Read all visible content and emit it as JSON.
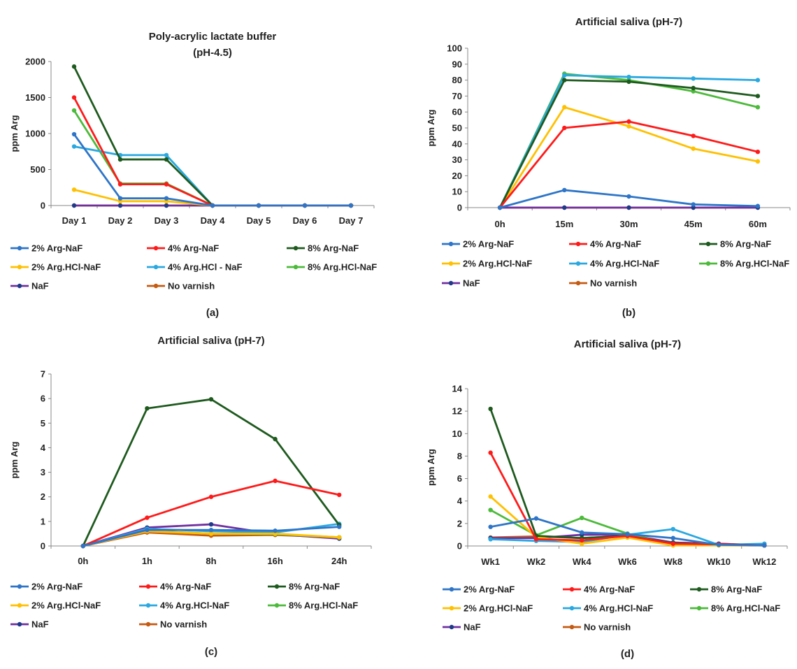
{
  "colors": {
    "s2argnaf": "#2e75c8",
    "s4argnaf": "#ff1a1a",
    "s8argnaf": "#1e5a1e",
    "s2hcl": "#ffc000",
    "s4hcl": "#2aa8e0",
    "s8hcl": "#4cba3a",
    "naf": "#7030a0",
    "novarnish": "#c55a11",
    "naf_marker": "#1f3a8a"
  },
  "chart_data": [
    {
      "type": "line",
      "panel_label": "(a)",
      "title": "Poly-acrylic lactate buffer",
      "subtitle": "(pH-4.5)",
      "ylabel": "ppm Arg",
      "ylim": [
        0,
        2000
      ],
      "yticks": [
        "0",
        "500",
        "1000",
        "1500",
        "2000"
      ],
      "categories": [
        "Day 1",
        "Day 2",
        "Day 3",
        "Day 4",
        "Day 5",
        "Day 6",
        "Day 7"
      ],
      "series": [
        {
          "name": "2% Arg-NaF",
          "key": "s2argnaf",
          "values": [
            990,
            100,
            100,
            0,
            0,
            0,
            0
          ]
        },
        {
          "name": "4% Arg-NaF",
          "key": "s4argnaf",
          "values": [
            1500,
            295,
            295,
            0,
            0,
            0,
            0
          ]
        },
        {
          "name": "8% Arg-NaF",
          "key": "s8argnaf",
          "values": [
            1930,
            640,
            640,
            0,
            0,
            0,
            0
          ]
        },
        {
          "name": "2% Arg.HCl-NaF",
          "key": "s2hcl",
          "values": [
            220,
            60,
            60,
            0,
            0,
            0,
            0
          ]
        },
        {
          "name": "4% Arg.HCl - NaF",
          "key": "s4hcl",
          "values": [
            820,
            700,
            700,
            0,
            0,
            0,
            0
          ]
        },
        {
          "name": "8% Arg.HCl-NaF",
          "key": "s8hcl",
          "values": [
            1320,
            305,
            305,
            0,
            0,
            0,
            0
          ]
        },
        {
          "name": "NaF",
          "key": "naf",
          "values": [
            0,
            0,
            0,
            0,
            0,
            0,
            0
          ]
        },
        {
          "name": "No varnish",
          "key": "novarnish",
          "values": [
            0,
            0,
            0,
            0,
            0,
            0,
            0
          ]
        }
      ]
    },
    {
      "type": "line",
      "panel_label": "(b)",
      "title": "Artificial saliva (pH-7)",
      "subtitle": "",
      "ylabel": "ppm Arg",
      "ylim": [
        0,
        100
      ],
      "yticks": [
        "0",
        "10",
        "20",
        "30",
        "40",
        "50",
        "60",
        "70",
        "80",
        "90",
        "100"
      ],
      "categories": [
        "0h",
        "15m",
        "30m",
        "45m",
        "60m"
      ],
      "series": [
        {
          "name": "2% Arg-NaF",
          "key": "s2argnaf",
          "values": [
            0,
            11,
            7,
            2,
            1
          ]
        },
        {
          "name": "4% Arg-NaF",
          "key": "s4argnaf",
          "values": [
            0,
            50,
            54,
            45,
            35
          ]
        },
        {
          "name": "8% Arg-NaF",
          "key": "s8argnaf",
          "values": [
            0,
            80,
            79,
            75,
            70
          ]
        },
        {
          "name": "2% Arg.HCl-NaF",
          "key": "s2hcl",
          "values": [
            0,
            63,
            51,
            37,
            29
          ]
        },
        {
          "name": "4% Arg.HCl-NaF",
          "key": "s4hcl",
          "values": [
            0,
            83,
            82,
            81,
            80
          ]
        },
        {
          "name": "8% Arg.HCl-NaF",
          "key": "s8hcl",
          "values": [
            0,
            84,
            80,
            73,
            63
          ]
        },
        {
          "name": "NaF",
          "key": "naf",
          "values": [
            0,
            0,
            0,
            0,
            0
          ]
        },
        {
          "name": "No varnish",
          "key": "novarnish",
          "values": [
            0,
            0,
            0,
            0,
            0
          ]
        }
      ]
    },
    {
      "type": "line",
      "panel_label": "(c)",
      "title": "Artificial saliva (pH-7)",
      "subtitle": "",
      "ylabel": "ppm Arg",
      "ylim": [
        0,
        7
      ],
      "yticks": [
        "0",
        "1",
        "2",
        "3",
        "4",
        "5",
        "6",
        "7"
      ],
      "categories": [
        "0h",
        "1h",
        "8h",
        "16h",
        "24h"
      ],
      "series": [
        {
          "name": "2% Arg-NaF",
          "key": "s2argnaf",
          "values": [
            0,
            0.65,
            0.65,
            0.62,
            0.78
          ]
        },
        {
          "name": "4% Arg-NaF",
          "key": "s4argnaf",
          "values": [
            0,
            1.15,
            2.0,
            2.65,
            2.08
          ]
        },
        {
          "name": "8% Arg-NaF",
          "key": "s8argnaf",
          "values": [
            0,
            5.6,
            5.97,
            4.35,
            0.85
          ]
        },
        {
          "name": "2% Arg.HCl-NaF",
          "key": "s2hcl",
          "values": [
            0,
            0.6,
            0.5,
            0.5,
            0.35
          ]
        },
        {
          "name": "4% Arg.HCl-NaF",
          "key": "s4hcl",
          "values": [
            0,
            0.7,
            0.6,
            0.55,
            0.9
          ]
        },
        {
          "name": "8% Arg.HCl-NaF",
          "key": "s8hcl",
          "values": [
            0,
            0.62,
            0.5,
            0.48,
            0.35
          ]
        },
        {
          "name": "NaF",
          "key": "naf",
          "values": [
            0,
            0.75,
            0.88,
            0.48,
            0.3
          ]
        },
        {
          "name": "No varnish",
          "key": "novarnish",
          "values": [
            0,
            0.55,
            0.42,
            0.45,
            0.35
          ]
        }
      ]
    },
    {
      "type": "line",
      "panel_label": "(d)",
      "title": "Artificial saliva (pH-7)",
      "subtitle": "",
      "ylabel": "ppm Arg",
      "ylim": [
        0,
        14
      ],
      "yticks": [
        "0",
        "2",
        "4",
        "6",
        "8",
        "10",
        "12",
        "14"
      ],
      "categories": [
        "Wk1",
        "Wk2",
        "Wk4",
        "Wk6",
        "Wk8",
        "Wk10",
        "Wk12"
      ],
      "series": [
        {
          "name": "2% Arg-NaF",
          "key": "s2argnaf",
          "values": [
            1.7,
            2.45,
            1.2,
            1.05,
            0.7,
            0.1,
            0.05
          ]
        },
        {
          "name": "4% Arg-NaF",
          "key": "s4argnaf",
          "values": [
            8.3,
            0.6,
            0.5,
            0.9,
            0.2,
            0.15,
            0.05
          ]
        },
        {
          "name": "8% Arg-NaF",
          "key": "s8argnaf",
          "values": [
            12.2,
            0.9,
            0.7,
            0.9,
            0.25,
            0.15,
            0.05
          ]
        },
        {
          "name": "2% Arg.HCl-NaF",
          "key": "s2hcl",
          "values": [
            4.4,
            0.8,
            0.2,
            0.75,
            0.05,
            0.05,
            0.05
          ]
        },
        {
          "name": "4% Arg.HCl-NaF",
          "key": "s4hcl",
          "values": [
            0.6,
            0.45,
            0.35,
            1.0,
            1.5,
            0.1,
            0.2
          ]
        },
        {
          "name": "8% Arg.HCl-NaF",
          "key": "s8hcl",
          "values": [
            3.2,
            0.95,
            2.5,
            1.1,
            0.1,
            0.1,
            0.05
          ]
        },
        {
          "name": "NaF",
          "key": "naf",
          "values": [
            0.7,
            0.7,
            1.0,
            1.0,
            0.3,
            0.2,
            0.05
          ]
        },
        {
          "name": "No varnish",
          "key": "novarnish",
          "values": [
            0.75,
            0.85,
            0.7,
            0.9,
            0.3,
            0.2,
            0.05
          ]
        }
      ]
    }
  ]
}
